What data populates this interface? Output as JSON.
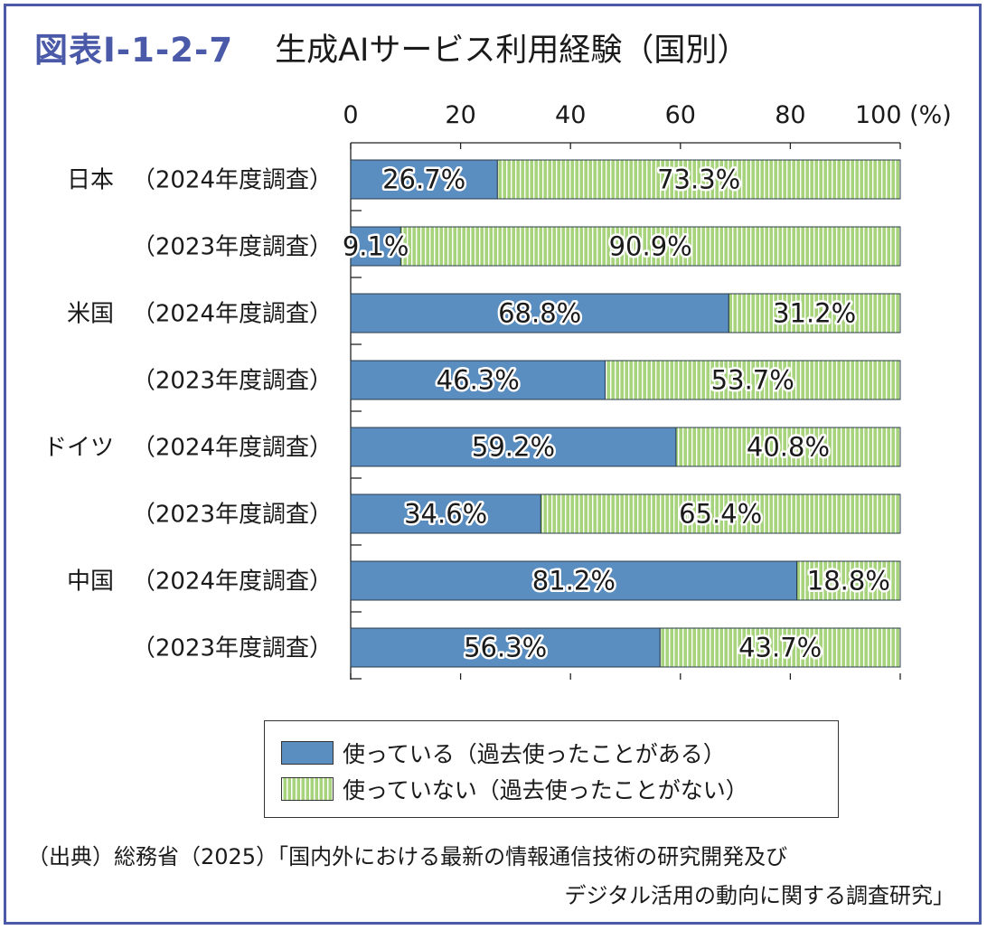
{
  "header": {
    "figure_number": "図表Ⅰ-1-2-7",
    "title": "生成AIサービス利用経験（国別）"
  },
  "chart_data": {
    "type": "bar",
    "orientation": "horizontal",
    "stacked": true,
    "axis_tick_labels": [
      "0",
      "20",
      "40",
      "60",
      "80",
      "100 (%)"
    ],
    "xlim": [
      0,
      100
    ],
    "unit": "%",
    "grid": false,
    "categories": [
      {
        "country": "日本",
        "survey": "（2024年度調査）"
      },
      {
        "country": "",
        "survey": "（2023年度調査）"
      },
      {
        "country": "米国",
        "survey": "（2024年度調査）"
      },
      {
        "country": "",
        "survey": "（2023年度調査）"
      },
      {
        "country": "ドイツ",
        "survey": "（2024年度調査）"
      },
      {
        "country": "",
        "survey": "（2023年度調査）"
      },
      {
        "country": "中国",
        "survey": "（2024年度調査）"
      },
      {
        "country": "",
        "survey": "（2023年度調査）"
      }
    ],
    "series": [
      {
        "name": "使っている（過去使ったことがある）",
        "color": "#5b8ec0",
        "values": [
          26.7,
          9.1,
          68.8,
          46.3,
          59.2,
          34.6,
          81.2,
          56.3
        ],
        "labels": [
          "26.7%",
          "9.1%",
          "68.8%",
          "46.3%",
          "59.2%",
          "34.6%",
          "81.2%",
          "56.3%"
        ]
      },
      {
        "name": "使っていない（過去使ったことがない）",
        "color": "#a7d37c",
        "values": [
          73.3,
          90.9,
          31.2,
          53.7,
          40.8,
          65.4,
          18.8,
          43.7
        ],
        "labels": [
          "73.3%",
          "90.9%",
          "31.2%",
          "53.7%",
          "40.8%",
          "65.4%",
          "18.8%",
          "43.7%"
        ]
      }
    ],
    "legend_position": "bottom"
  },
  "legend": {
    "used_label": "使っている（過去使ったことがある）",
    "unused_label": "使っていない（過去使ったことがない）"
  },
  "source": {
    "line1": "（出典）総務省（2025）「国内外における最新の情報通信技術の研究開発及び",
    "line2": "デジタル活用の動向に関する調査研究」"
  }
}
